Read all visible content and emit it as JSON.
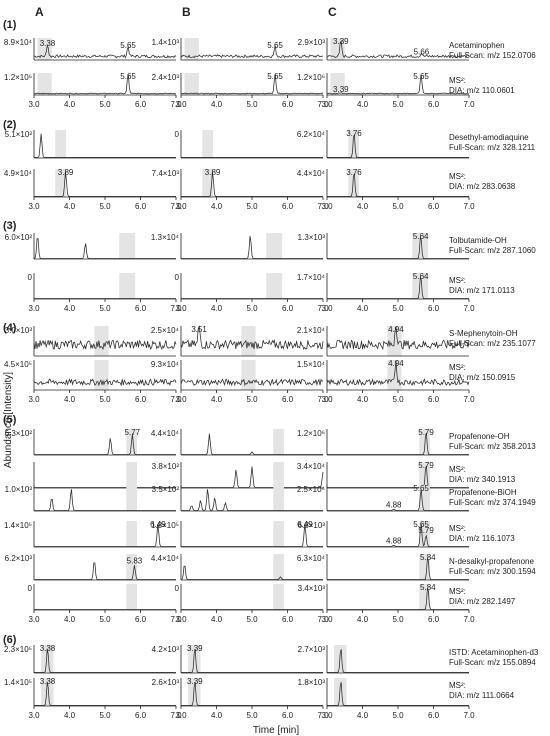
{
  "column_labels": [
    "A",
    "B",
    "C"
  ],
  "y_axis_label": "Abundance [Intensity]",
  "x_axis_label": "Time [min]",
  "x_ticks": [
    "3.0",
    "4.0",
    "5.0",
    "6.0",
    "7.0"
  ],
  "xlim": [
    3.0,
    7.0
  ],
  "colors": {
    "trace": "#333333",
    "shade": "#e4e4e4",
    "axis": "#222222"
  },
  "chart_data": {
    "type": "line",
    "description_panels": "6 sections x 3 columns of extracted ion chromatograms; each row has a Full-Scan and MS2 DIA trace",
    "sections": [
      {
        "label": "(1)",
        "rows": [
          {
            "compound": "Acetaminophen",
            "scan": "Full-Scan: m/z 152.0706",
            "shade": [
              3.1,
              3.5
            ],
            "noise": 0.25,
            "panels": [
              {
                "ymax": "8.9×10⁴",
                "peaks": [
                  {
                    "t": 3.38,
                    "h": 0.55,
                    "label": "3.38"
                  },
                  {
                    "t": 5.65,
                    "h": 0.45,
                    "label": "5.65"
                  }
                ]
              },
              {
                "ymax": "1.4×10³",
                "peaks": [
                  {
                    "t": 5.65,
                    "h": 0.45,
                    "label": "5.65"
                  }
                ]
              },
              {
                "ymax": "2.9×10³",
                "peaks": [
                  {
                    "t": 3.39,
                    "h": 0.75,
                    "label": "3.39"
                  },
                  {
                    "t": 5.66,
                    "h": 0.15,
                    "label": "5.66"
                  }
                ]
              }
            ]
          },
          {
            "compound": "",
            "scan": "DIA: m/z 110.0601",
            "prefix": "MS²:",
            "shade": [
              3.1,
              3.5
            ],
            "noise": 0.08,
            "panels": [
              {
                "ymax": "1.2×10⁶",
                "peaks": [
                  {
                    "t": 5.65,
                    "h": 0.9,
                    "label": "5.65"
                  }
                ]
              },
              {
                "ymax": "2.4×10³",
                "peaks": [
                  {
                    "t": 5.65,
                    "h": 0.9,
                    "label": "5.65"
                  }
                ]
              },
              {
                "ymax": "1.2×10⁶",
                "peaks": [
                  {
                    "t": 3.39,
                    "h": 0.05,
                    "label": "3.39"
                  },
                  {
                    "t": 5.65,
                    "h": 0.9,
                    "label": "5.65"
                  }
                ]
              }
            ]
          }
        ]
      },
      {
        "label": "(2)",
        "rows": [
          {
            "compound": "Desethyl-amodiaquine",
            "scan": "Full-Scan: m/z 328.1211",
            "shade": [
              3.6,
              3.9
            ],
            "noise": 0.0,
            "panels": [
              {
                "ymax": "5.1×10²",
                "peaks": [
                  {
                    "t": 3.2,
                    "h": 0.85,
                    "label": ""
                  }
                ]
              },
              {
                "ymax": "0",
                "peaks": []
              },
              {
                "ymax": "6.2×10⁴",
                "peaks": [
                  {
                    "t": 3.76,
                    "h": 0.9,
                    "label": "3.76"
                  }
                ]
              }
            ]
          },
          {
            "compound": "",
            "scan": "DIA: m/z 283.0638",
            "prefix": "MS²:",
            "shade": [
              3.6,
              3.9
            ],
            "noise": 0.0,
            "panels": [
              {
                "ymax": "4.9×10⁴",
                "peaks": [
                  {
                    "t": 3.89,
                    "h": 0.9,
                    "label": "3.89"
                  }
                ]
              },
              {
                "ymax": "7.4×10³",
                "peaks": [
                  {
                    "t": 3.89,
                    "h": 0.9,
                    "label": "3.89"
                  }
                ]
              },
              {
                "ymax": "4.4×10⁴",
                "peaks": [
                  {
                    "t": 3.76,
                    "h": 0.9,
                    "label": "3.76"
                  }
                ]
              }
            ]
          }
        ]
      },
      {
        "label": "(3)",
        "rows": [
          {
            "compound": "Tolbutamide-OH",
            "scan": "Full-Scan: m/z 287.1060",
            "shade": [
              5.4,
              5.85
            ],
            "noise": 0.0,
            "panels": [
              {
                "ymax": "6.0×10²",
                "peaks": [
                  {
                    "t": 3.1,
                    "h": 0.9,
                    "label": ""
                  },
                  {
                    "t": 4.45,
                    "h": 0.6,
                    "label": ""
                  }
                ]
              },
              {
                "ymax": "1.3×10⁴",
                "peaks": [
                  {
                    "t": 4.95,
                    "h": 0.9,
                    "label": ""
                  }
                ]
              },
              {
                "ymax": "1.3×10³",
                "peaks": [
                  {
                    "t": 5.64,
                    "h": 0.9,
                    "label": "5.64"
                  }
                ]
              }
            ]
          },
          {
            "compound": "",
            "scan": "DIA: m/z 171.0113",
            "prefix": "MS²:",
            "shade": [
              5.4,
              5.85
            ],
            "noise": 0.0,
            "panels": [
              {
                "ymax": "0",
                "peaks": []
              },
              {
                "ymax": "0",
                "peaks": []
              },
              {
                "ymax": "1.7×10⁴",
                "peaks": [
                  {
                    "t": 5.64,
                    "h": 0.9,
                    "label": "5.64"
                  }
                ]
              }
            ]
          }
        ]
      },
      {
        "label": "(4)",
        "rows": [
          {
            "compound": "S-Mephenytoin-OH",
            "scan": "Full-Scan: m/z 235.1077",
            "shade": [
              4.7,
              5.1
            ],
            "noise": 0.6,
            "panels": [
              {
                "ymax": "3.0×10³",
                "peaks": []
              },
              {
                "ymax": "2.5×10⁴",
                "peaks": [
                  {
                    "t": 3.51,
                    "h": 0.75,
                    "label": "3.51"
                  }
                ]
              },
              {
                "ymax": "2.1×10⁴",
                "peaks": [
                  {
                    "t": 4.94,
                    "h": 0.8,
                    "label": "4.94"
                  }
                ]
              }
            ]
          },
          {
            "compound": "",
            "scan": "DIA: m/z 150.0915",
            "prefix": "MS²:",
            "shade": [
              4.7,
              5.1
            ],
            "noise": 0.4,
            "panels": [
              {
                "ymax": "4.5×10⁵",
                "peaks": []
              },
              {
                "ymax": "9.3×10⁴",
                "peaks": []
              },
              {
                "ymax": "1.5×10⁴",
                "peaks": [
                  {
                    "t": 4.94,
                    "h": 0.75,
                    "label": "4.94"
                  }
                ]
              }
            ]
          }
        ]
      },
      {
        "label": "(5)",
        "rows": [
          {
            "compound": "Propafenone-OH",
            "scan": "Full-Scan: m/z 358.2013",
            "shade": [
              5.6,
              5.9
            ],
            "noise": 0.0,
            "panels": [
              {
                "ymax": "6.3×10²",
                "peaks": [
                  {
                    "t": 5.15,
                    "h": 0.65,
                    "label": ""
                  },
                  {
                    "t": 5.77,
                    "h": 0.8,
                    "label": "5.77"
                  }
                ]
              },
              {
                "ymax": "4.4×10⁴",
                "peaks": [
                  {
                    "t": 3.8,
                    "h": 0.8,
                    "label": ""
                  },
                  {
                    "t": 5.0,
                    "h": 0.1,
                    "label": ""
                  }
                ]
              },
              {
                "ymax": "1.2×10⁶",
                "peaks": [
                  {
                    "t": 5.79,
                    "h": 0.9,
                    "label": "5.79"
                  }
                ]
              }
            ]
          },
          {
            "compound": "",
            "scan": "DIA: m/z 340.1913",
            "prefix": "MS²:",
            "shade": [
              5.6,
              5.9
            ],
            "noise": 0.0,
            "panels": [
              {
                "ymax": "",
                "peaks": []
              },
              {
                "ymax": "3.8×10²",
                "peaks": [
                  {
                    "t": 4.55,
                    "h": 0.7,
                    "label": ""
                  },
                  {
                    "t": 5.0,
                    "h": 0.8,
                    "label": ""
                  },
                  {
                    "t": 7.0,
                    "h": 0.6,
                    "label": ""
                  }
                ]
              },
              {
                "ymax": "3.4×10⁴",
                "peaks": [
                  {
                    "t": 5.79,
                    "h": 0.9,
                    "label": "5.79"
                  }
                ]
              }
            ]
          },
          {
            "compound": "Propafenone-BiOH",
            "scan": "Full-Scan: m/z 374.1949",
            "shade": [
              5.6,
              5.9
            ],
            "noise": 0.0,
            "panels": [
              {
                "ymax": "1.0×10³",
                "peaks": [
                  {
                    "t": 3.5,
                    "h": 0.5,
                    "label": ""
                  },
                  {
                    "t": 4.05,
                    "h": 0.85,
                    "label": ""
                  }
                ]
              },
              {
                "ymax": "3.5×10²",
                "peaks": [
                  {
                    "t": 3.3,
                    "h": 0.2,
                    "label": ""
                  },
                  {
                    "t": 3.55,
                    "h": 0.4,
                    "label": ""
                  },
                  {
                    "t": 3.75,
                    "h": 0.85,
                    "label": ""
                  },
                  {
                    "t": 3.95,
                    "h": 0.5,
                    "label": ""
                  },
                  {
                    "t": 4.25,
                    "h": 0.3,
                    "label": ""
                  }
                ]
              },
              {
                "ymax": "2.5×10⁴",
                "peaks": [
                  {
                    "t": 4.88,
                    "h": 0.05,
                    "label": "4.88"
                  },
                  {
                    "t": 5.65,
                    "h": 0.85,
                    "label": "5.65"
                  }
                ]
              }
            ]
          },
          {
            "compound": "",
            "scan": "DIA: m/z 116.1073",
            "prefix": "MS²:",
            "shade": [
              5.6,
              5.9
            ],
            "noise": 0.0,
            "panels": [
              {
                "ymax": "1.4×10⁵",
                "peaks": [
                  {
                    "t": 6.49,
                    "h": 0.85,
                    "label": "6.49"
                  }
                ]
              },
              {
                "ymax": "1.8×10⁵",
                "peaks": [
                  {
                    "t": 6.49,
                    "h": 0.85,
                    "label": "6.49"
                  }
                ]
              },
              {
                "ymax": "6.8×10³",
                "peaks": [
                  {
                    "t": 4.88,
                    "h": 0.05,
                    "label": "4.88"
                  },
                  {
                    "t": 5.65,
                    "h": 0.9,
                    "label": "5.65"
                  },
                  {
                    "t": 5.79,
                    "h": 0.45,
                    "label": "5.79"
                  }
                ]
              }
            ]
          },
          {
            "compound": "N-desalkyl-propafenone",
            "scan": "Full-Scan: m/z 300.1594",
            "shade": [
              5.6,
              5.9
            ],
            "noise": 0.0,
            "panels": [
              {
                "ymax": "6.2×10³",
                "peaks": [
                  {
                    "t": 4.7,
                    "h": 0.75,
                    "label": ""
                  },
                  {
                    "t": 5.83,
                    "h": 0.55,
                    "label": "5.83"
                  }
                ]
              },
              {
                "ymax": "4.4×10⁴",
                "peaks": [
                  {
                    "t": 3.1,
                    "h": 0.6,
                    "label": ""
                  },
                  {
                    "t": 5.8,
                    "h": 0.1,
                    "label": ""
                  }
                ]
              },
              {
                "ymax": "6.3×10⁴",
                "peaks": [
                  {
                    "t": 5.84,
                    "h": 0.9,
                    "label": "5.84"
                  }
                ]
              }
            ]
          },
          {
            "compound": "",
            "scan": "DIA: m/z 282.1497",
            "prefix": "MS²:",
            "shade": [
              5.6,
              5.9
            ],
            "noise": 0.0,
            "panels": [
              {
                "ymax": "0",
                "peaks": []
              },
              {
                "ymax": "0",
                "peaks": []
              },
              {
                "ymax": "3.4×10³",
                "peaks": [
                  {
                    "t": 5.84,
                    "h": 0.9,
                    "label": "5.84"
                  }
                ]
              }
            ]
          }
        ]
      },
      {
        "label": "(6)",
        "rows": [
          {
            "compound": "ISTD: Acetaminophen-d3",
            "scan": "Full-Scan: m/z 155.0894",
            "shade": [
              3.2,
              3.55
            ],
            "noise": 0.0,
            "panels": [
              {
                "ymax": "2.3×10⁵",
                "peaks": [
                  {
                    "t": 3.38,
                    "h": 0.9,
                    "label": "3.38"
                  }
                ]
              },
              {
                "ymax": "4.2×10³",
                "peaks": [
                  {
                    "t": 3.39,
                    "h": 0.9,
                    "label": "3.39"
                  }
                ]
              },
              {
                "ymax": "2.7×10³",
                "peaks": [
                  {
                    "t": 3.39,
                    "h": 0.9,
                    "label": ""
                  }
                ]
              }
            ]
          },
          {
            "compound": "",
            "scan": "DIA: m/z 111.0664",
            "prefix": "MS²:",
            "shade": [
              3.2,
              3.55
            ],
            "noise": 0.0,
            "panels": [
              {
                "ymax": "1.4×10⁵",
                "peaks": [
                  {
                    "t": 3.38,
                    "h": 0.9,
                    "label": "3.38"
                  }
                ]
              },
              {
                "ymax": "2.6×10³",
                "peaks": [
                  {
                    "t": 3.39,
                    "h": 0.9,
                    "label": "3.39"
                  }
                ]
              },
              {
                "ymax": "1.8×10³",
                "peaks": [
                  {
                    "t": 3.39,
                    "h": 0.9,
                    "label": ""
                  }
                ]
              }
            ]
          }
        ]
      }
    ]
  }
}
